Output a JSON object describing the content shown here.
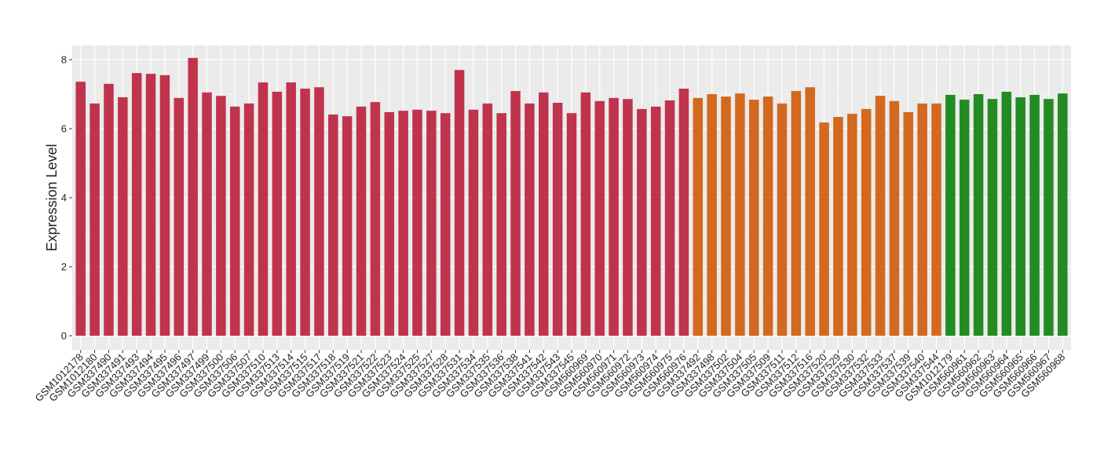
{
  "chart_data": {
    "type": "bar",
    "y_label": "Expression Level",
    "ylim": [
      -0.41,
      8.41
    ],
    "yticks": [
      0,
      2,
      4,
      6,
      8
    ],
    "minor_yticks": [
      1,
      3,
      5,
      7
    ],
    "grid": true,
    "series": [
      {
        "color": "#c0334d",
        "categories": [
          "GSM1012178",
          "GSM1012180",
          "GSM337490",
          "GSM337491",
          "GSM337493",
          "GSM337494",
          "GSM337495",
          "GSM337496",
          "GSM337497",
          "GSM337499",
          "GSM337500",
          "GSM337506",
          "GSM337507",
          "GSM337510",
          "GSM337513",
          "GSM337514",
          "GSM337515",
          "GSM337517",
          "GSM337518",
          "GSM337519",
          "GSM337521",
          "GSM337522",
          "GSM337523",
          "GSM337524",
          "GSM337525",
          "GSM337527",
          "GSM337528",
          "GSM337531",
          "GSM337534",
          "GSM337535",
          "GSM337536",
          "GSM337538",
          "GSM337541",
          "GSM337542",
          "GSM337543",
          "GSM337545",
          "GSM560969",
          "GSM560970",
          "GSM560971",
          "GSM560972",
          "GSM560973",
          "GSM560974",
          "GSM560975",
          "GSM560976"
        ],
        "values": [
          7.36,
          6.73,
          7.3,
          6.91,
          7.61,
          7.59,
          7.55,
          6.89,
          8.05,
          7.05,
          6.95,
          6.64,
          6.73,
          7.34,
          7.07,
          7.34,
          7.16,
          7.2,
          6.41,
          6.36,
          6.64,
          6.77,
          6.48,
          6.52,
          6.55,
          6.52,
          6.45,
          7.7,
          6.55,
          6.73,
          6.45,
          7.09,
          6.73,
          7.05,
          6.75,
          6.45,
          7.05,
          6.8,
          6.89,
          6.86,
          6.57,
          6.64,
          6.82,
          7.16
        ]
      },
      {
        "color": "#d2691e",
        "categories": [
          "GSM337492",
          "GSM337498",
          "GSM337502",
          "GSM337504",
          "GSM337505",
          "GSM337509",
          "GSM337511",
          "GSM337512",
          "GSM337516",
          "GSM337520",
          "GSM337529",
          "GSM337530",
          "GSM337532",
          "GSM337533",
          "GSM337537",
          "GSM337539",
          "GSM337540",
          "GSM337544"
        ],
        "values": [
          6.89,
          7.0,
          6.93,
          7.02,
          6.84,
          6.93,
          6.73,
          7.09,
          7.2,
          6.18,
          6.34,
          6.43,
          6.57,
          6.95,
          6.8,
          6.48,
          6.73,
          6.73
        ]
      },
      {
        "color": "#228b22",
        "categories": [
          "GSM1012179",
          "GSM560961",
          "GSM560962",
          "GSM560963",
          "GSM560964",
          "GSM560965",
          "GSM560966",
          "GSM560967",
          "GSM560968"
        ],
        "values": [
          6.98,
          6.84,
          7.0,
          6.86,
          7.07,
          6.91,
          6.98,
          6.86,
          7.02
        ]
      }
    ]
  }
}
